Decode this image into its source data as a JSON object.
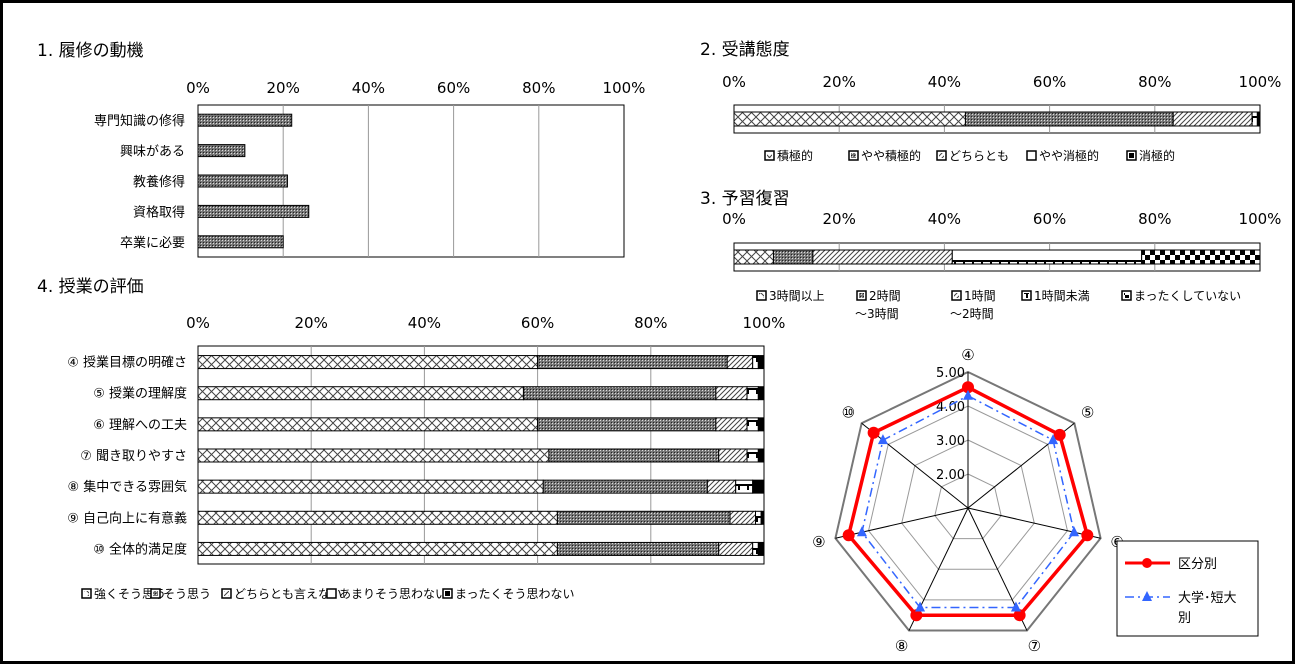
{
  "chart_data": [
    {
      "type": "bar",
      "orientation": "horizontal",
      "title": "1. 履修の動機",
      "categories": [
        "専門知識の修得",
        "興味がある",
        "教養修得",
        "資格取得",
        "卒業に必要"
      ],
      "values": [
        22,
        11,
        21,
        26,
        20
      ],
      "xlim": [
        0,
        100
      ],
      "ticks": [
        "0%",
        "20%",
        "40%",
        "60%",
        "80%",
        "100%"
      ],
      "grid": true
    },
    {
      "type": "bar",
      "stacked": true,
      "normalized": true,
      "title": "2. 受講態度",
      "categories": [
        ""
      ],
      "series": [
        {
          "name": "積極的",
          "values": [
            44
          ]
        },
        {
          "name": "やや積極的",
          "values": [
            39.5
          ]
        },
        {
          "name": "どちらとも",
          "values": [
            15
          ]
        },
        {
          "name": "やや消極的",
          "values": [
            1
          ]
        },
        {
          "name": "消極的",
          "values": [
            0.5
          ]
        }
      ],
      "ticks": [
        "0%",
        "20%",
        "40%",
        "60%",
        "80%",
        "100%"
      ],
      "legend_position": "bottom"
    },
    {
      "type": "bar",
      "stacked": true,
      "normalized": true,
      "title": "3. 予習復習",
      "categories": [
        ""
      ],
      "series": [
        {
          "name": "3時間以上",
          "values": [
            7.5
          ]
        },
        {
          "name": "2時間\n～3時間",
          "values": [
            7.5
          ]
        },
        {
          "name": "1時間\n～2時間",
          "values": [
            26.5
          ]
        },
        {
          "name": "1時間未満",
          "values": [
            36
          ]
        },
        {
          "name": "まったくしていない",
          "values": [
            22.5
          ]
        }
      ],
      "ticks": [
        "0%",
        "20%",
        "40%",
        "60%",
        "80%",
        "100%"
      ],
      "legend_position": "bottom"
    },
    {
      "type": "bar",
      "stacked": true,
      "normalized": true,
      "title": "4. 授業の評価",
      "categories": [
        "④ 授業目標の明確さ",
        "⑤ 授業の理解度",
        "⑥ 理解への工夫",
        "⑦ 聞き取りやすさ",
        "⑧ 集中できる雰囲気",
        "⑨ 自己向上に有意義",
        "⑩ 全体的満足度"
      ],
      "series": [
        {
          "name": "強くそう思う",
          "values": [
            60,
            57.5,
            60,
            62,
            61,
            63.5,
            63.5
          ]
        },
        {
          "name": "そう思う",
          "values": [
            33.5,
            34,
            31.5,
            30,
            29,
            30.5,
            28.5
          ]
        },
        {
          "name": "どちらとも言えない",
          "values": [
            4.5,
            5.5,
            5.5,
            5,
            5,
            4.5,
            6
          ]
        },
        {
          "name": "あまりそう思わない",
          "values": [
            1,
            2,
            2,
            2,
            3,
            1,
            1
          ]
        },
        {
          "name": "まったくそう思わない",
          "values": [
            1,
            1,
            1,
            1,
            2,
            0.5,
            1
          ]
        }
      ],
      "ticks": [
        "0%",
        "20%",
        "40%",
        "60%",
        "80%",
        "100%"
      ],
      "legend_position": "bottom"
    },
    {
      "type": "radar",
      "axes": [
        "④",
        "⑤",
        "⑥",
        "⑦",
        "⑧",
        "⑨",
        "⑩"
      ],
      "rlim": [
        1,
        5
      ],
      "ring_labels": [
        "2.00",
        "3.00",
        "4.00",
        "5.00"
      ],
      "series": [
        {
          "name": "区分別",
          "values": [
            4.55,
            4.45,
            4.6,
            4.5,
            4.5,
            4.6,
            4.55
          ],
          "color": "#ff0000"
        },
        {
          "name": "大学･短大別",
          "values": [
            4.3,
            4.2,
            4.2,
            4.25,
            4.25,
            4.2,
            4.2
          ],
          "color": "#3366ff"
        }
      ],
      "legend_position": "right"
    }
  ]
}
